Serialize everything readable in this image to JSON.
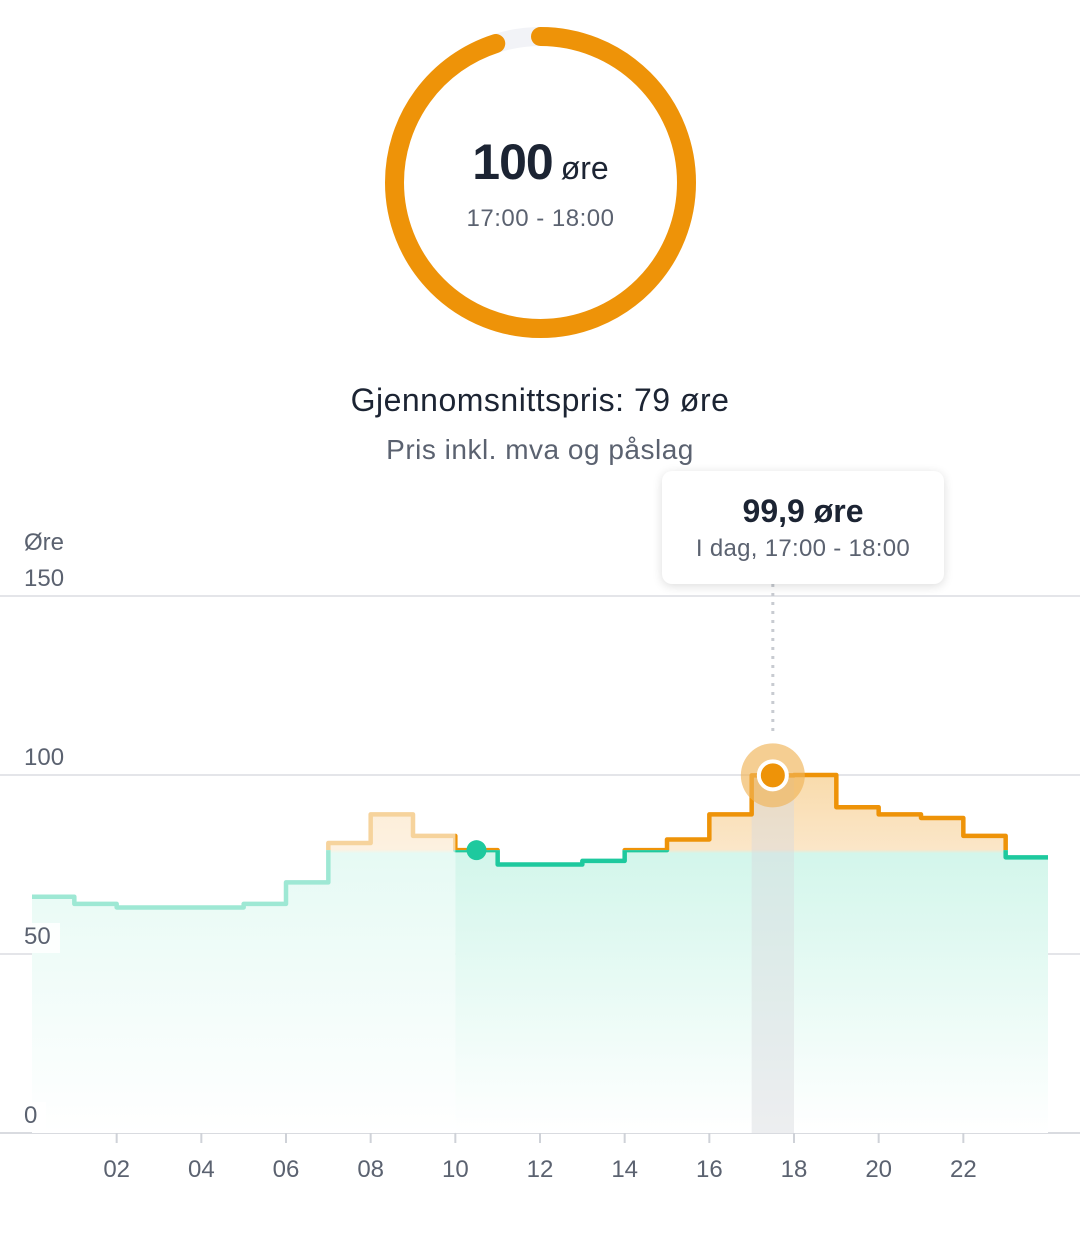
{
  "current_price": {
    "value": "100",
    "unit": "øre",
    "time_range": "17:00 - 18:00",
    "ring_fraction": 0.95,
    "color": "#ee9308"
  },
  "average": {
    "label": "Gjennomsnittspris: 79 øre",
    "note": "Pris inkl. mva og påslag"
  },
  "tooltip": {
    "value": "99,9 øre",
    "time": "I dag, 17:00 - 18:00"
  },
  "colors": {
    "cheap": "#1ec99e",
    "expensive": "#ee9308",
    "past_cheap": "#9ee8d4",
    "past_expensive": "#f6d39c"
  },
  "chart_data": {
    "type": "line",
    "step": true,
    "ylabel": "Øre",
    "ylim": [
      0,
      150
    ],
    "yticks": [
      0,
      50,
      100,
      150
    ],
    "xlim": [
      0,
      24
    ],
    "xtick_labels": [
      "02",
      "04",
      "06",
      "08",
      "10",
      "12",
      "14",
      "16",
      "18",
      "20",
      "22"
    ],
    "series": [
      {
        "hour_start": [
          0,
          1,
          2,
          3,
          4,
          5,
          6,
          7,
          8,
          9,
          10,
          11,
          12,
          13,
          14,
          15,
          16,
          17,
          18,
          19,
          20,
          21,
          22,
          23
        ],
        "values": [
          66,
          64,
          63,
          63,
          63,
          64,
          70,
          81,
          89,
          83,
          79,
          75,
          75,
          76,
          79,
          82,
          89,
          99.9,
          100,
          91,
          89,
          88,
          83,
          77
        ]
      }
    ],
    "current_hour": 10,
    "current_value": 79,
    "selected_hour": 17,
    "selected_value": 99.9,
    "color_threshold": 79
  }
}
